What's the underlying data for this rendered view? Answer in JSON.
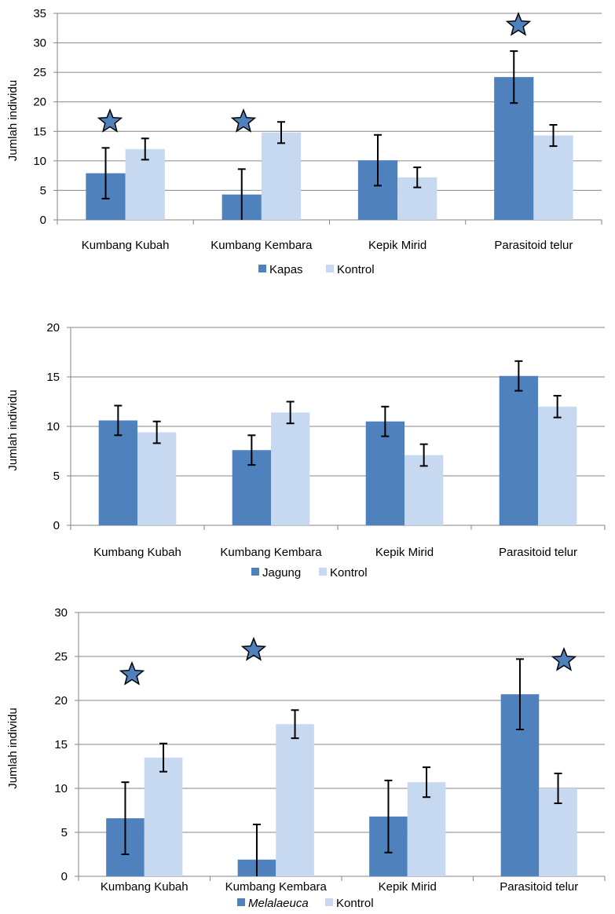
{
  "chart_data": [
    {
      "type": "bar",
      "categories": [
        "Kumbang Kubah",
        "Kumbang Kembara",
        "Kepik Mirid",
        "Parasitoid telur"
      ],
      "ylabel": "Jumlah individu",
      "ylim": [
        0,
        35
      ],
      "yticks": [
        0,
        5,
        10,
        15,
        20,
        25,
        30,
        35
      ],
      "grid": true,
      "legend_position": "bottom",
      "series": [
        {
          "name": "Kapas",
          "color": "#4f81bd",
          "italic": false,
          "values": [
            7.9,
            4.3,
            10.1,
            24.2
          ],
          "errors": [
            4.3,
            4.3,
            4.3,
            4.4
          ]
        },
        {
          "name": "Kontrol",
          "color": "#c6d9f1",
          "italic": false,
          "values": [
            12.0,
            14.8,
            7.2,
            14.3
          ],
          "errors": [
            1.8,
            1.8,
            1.7,
            1.8
          ]
        }
      ],
      "significance_marker": "star",
      "significant_categories": [
        0,
        1,
        3
      ]
    },
    {
      "type": "bar",
      "categories": [
        "Kumbang Kubah",
        "Kumbang Kembara",
        "Kepik Mirid",
        "Parasitoid telur"
      ],
      "ylabel": "Jumlah individu",
      "ylim": [
        0,
        20
      ],
      "yticks": [
        0,
        5,
        10,
        15,
        20
      ],
      "grid": true,
      "legend_position": "bottom",
      "series": [
        {
          "name": "Jagung",
          "color": "#4f81bd",
          "italic": false,
          "values": [
            10.6,
            7.6,
            10.5,
            15.1
          ],
          "errors": [
            1.5,
            1.5,
            1.5,
            1.5
          ]
        },
        {
          "name": "Kontrol",
          "color": "#c6d9f1",
          "italic": false,
          "values": [
            9.4,
            11.4,
            7.1,
            12.0
          ],
          "errors": [
            1.1,
            1.1,
            1.1,
            1.1
          ]
        }
      ],
      "significance_marker": "star",
      "significant_categories": []
    },
    {
      "type": "bar",
      "categories": [
        "Kumbang Kubah",
        "Kumbang Kembara",
        "Kepik Mirid",
        "Parasitoid telur"
      ],
      "ylabel": "Jumlah individu",
      "ylim": [
        0,
        30
      ],
      "yticks": [
        0,
        5,
        10,
        15,
        20,
        25,
        30
      ],
      "grid": true,
      "legend_position": "bottom",
      "series": [
        {
          "name": "Melalaeuca",
          "color": "#4f81bd",
          "italic": true,
          "values": [
            6.6,
            1.9,
            6.8,
            20.7
          ],
          "errors": [
            4.1,
            4.0,
            4.1,
            4.0
          ]
        },
        {
          "name": "Kontrol",
          "color": "#c6d9f1",
          "italic": false,
          "values": [
            13.5,
            17.3,
            10.7,
            10.0
          ],
          "errors": [
            1.6,
            1.6,
            1.7,
            1.7
          ]
        }
      ],
      "significance_marker": "star",
      "significant_categories": [
        0,
        1,
        3
      ]
    }
  ]
}
